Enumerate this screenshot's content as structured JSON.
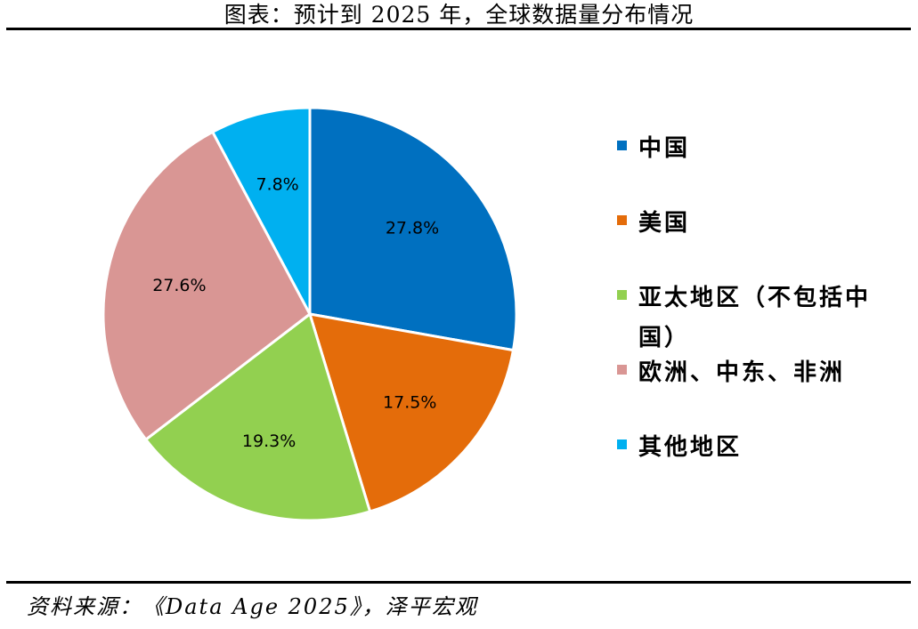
{
  "header": {
    "title": "图表：预计到 2025 年，全球数据量分布情况"
  },
  "chart_data": {
    "type": "pie",
    "title": "图表：预计到 2025 年，全球数据量分布情况",
    "categories": [
      "中国",
      "美国",
      "亚太地区（不包括中国）",
      "欧洲、中东、非洲",
      "其他地区"
    ],
    "values": [
      27.8,
      17.5,
      19.3,
      27.6,
      7.8
    ],
    "value_labels": [
      "27.8%",
      "17.5%",
      "19.3%",
      "27.6%",
      "7.8%"
    ],
    "colors": [
      "#0070C0",
      "#E46C0A",
      "#92D050",
      "#D99694",
      "#00B0F0"
    ],
    "legend_placement": "right",
    "start": "12 o'clock, clockwise"
  },
  "footer": {
    "source": "资料来源：《Data Age 2025》，泽平宏观"
  }
}
